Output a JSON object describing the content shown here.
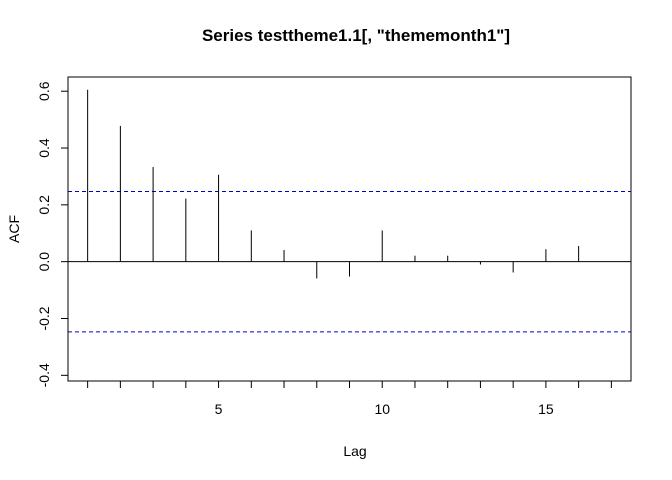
{
  "chart_data": {
    "type": "bar",
    "title": "Series  testtheme1.1[, \"thememonth1\"]",
    "xlabel": "Lag",
    "ylabel": "ACF",
    "x": [
      1,
      2,
      3,
      4,
      5,
      6,
      7,
      8,
      9,
      10,
      11,
      12,
      13,
      14,
      15,
      16
    ],
    "values": [
      0.605,
      0.478,
      0.333,
      0.222,
      0.306,
      0.11,
      0.041,
      -0.059,
      -0.052,
      0.11,
      0.021,
      0.021,
      -0.01,
      -0.038,
      0.044,
      0.055
    ],
    "xlim": [
      0.4,
      17.6
    ],
    "ylim": [
      -0.42,
      0.65
    ],
    "xticks": [
      5,
      10,
      15
    ],
    "xticks_extra_unlabeled": [
      1,
      2,
      3,
      4,
      6,
      7,
      8,
      9,
      11,
      12,
      13,
      14,
      16,
      17
    ],
    "yticks": [
      -0.4,
      -0.2,
      0.0,
      0.2,
      0.4,
      0.6
    ],
    "ytick_labels": [
      "-0.4",
      "-0.2",
      "0.0",
      "0.2",
      "0.4",
      "0.6"
    ],
    "confidence_bound": 0.247,
    "zero_line": 0,
    "colors": {
      "bars": "#000000",
      "confidence_lines": "#0000cc",
      "axes": "#000000"
    }
  }
}
